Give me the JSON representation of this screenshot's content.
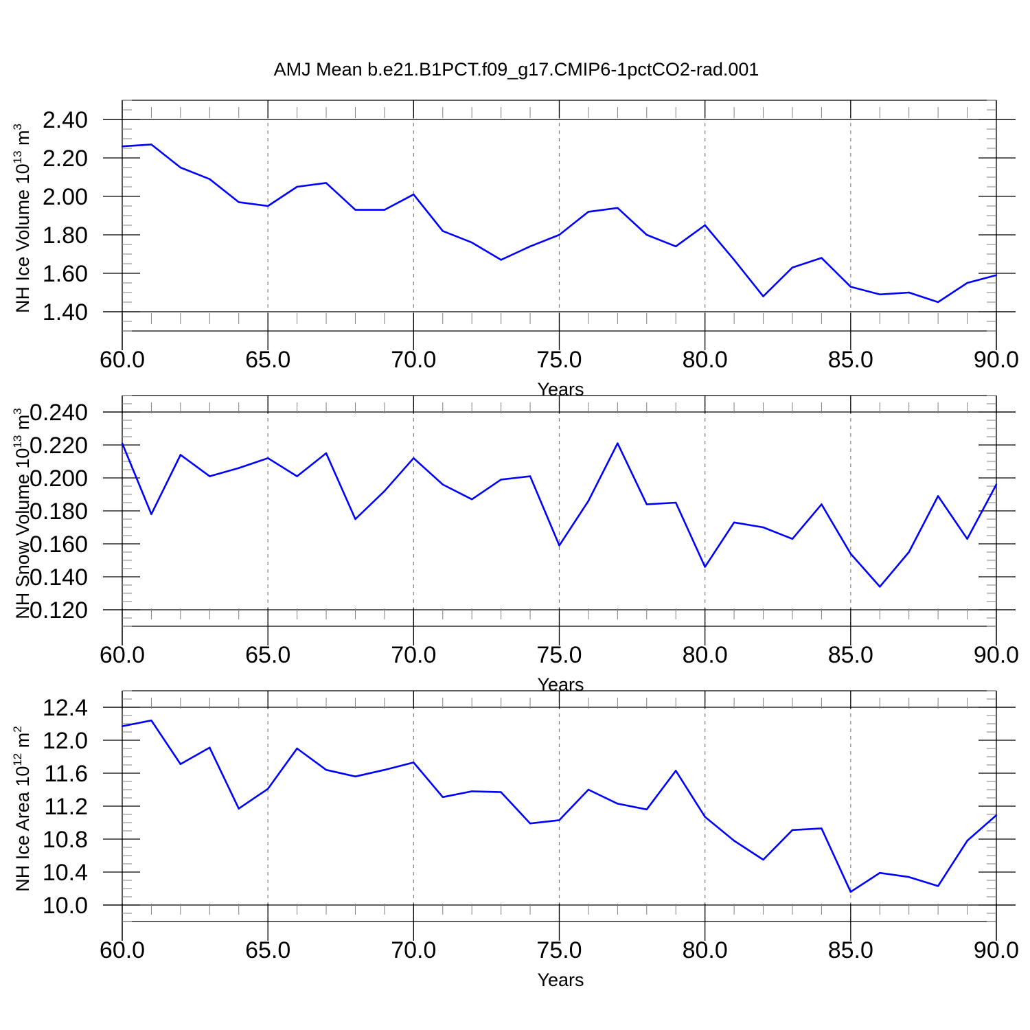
{
  "title": "AMJ Mean b.e21.B1PCT.f09_g17.CMIP6-1pctCO2-rad.001",
  "colors": {
    "line": "#0000ff",
    "axis": "#000000",
    "grid": "#808080"
  },
  "chart_data": [
    {
      "type": "line",
      "xlabel": "Years",
      "ylabel": {
        "text": "NH Ice Volume 10",
        "exponent": "13",
        "unit_text": " m",
        "unit_exponent": "3"
      },
      "xlim": [
        60,
        90
      ],
      "ylim": [
        1.3,
        2.5
      ],
      "x_ticks": [
        "60.0",
        "65.0",
        "70.0",
        "75.0",
        "80.0",
        "85.0",
        "90.0"
      ],
      "y_ticks": [
        "1.40",
        "1.60",
        "1.80",
        "2.00",
        "2.20",
        "2.40"
      ],
      "grid": "dashed vertical at major x ticks",
      "x": [
        60,
        61,
        62,
        63,
        64,
        65,
        66,
        67,
        68,
        69,
        70,
        71,
        72,
        73,
        74,
        75,
        76,
        77,
        78,
        79,
        80,
        81,
        82,
        83,
        84,
        85,
        86,
        87,
        88,
        89,
        90
      ],
      "values": [
        2.26,
        2.27,
        2.15,
        2.09,
        1.97,
        1.95,
        2.05,
        2.07,
        1.93,
        1.93,
        2.01,
        1.82,
        1.76,
        1.67,
        1.74,
        1.8,
        1.92,
        1.94,
        1.8,
        1.74,
        1.85,
        1.67,
        1.48,
        1.63,
        1.68,
        1.53,
        1.49,
        1.5,
        1.45,
        1.55,
        1.59
      ]
    },
    {
      "type": "line",
      "xlabel": "Years",
      "ylabel": {
        "text": "NH Snow Volume 10",
        "exponent": "13",
        "unit_text": " m",
        "unit_exponent": "3"
      },
      "xlim": [
        60,
        90
      ],
      "ylim": [
        0.11,
        0.25
      ],
      "x_ticks": [
        "60.0",
        "65.0",
        "70.0",
        "75.0",
        "80.0",
        "85.0",
        "90.0"
      ],
      "y_ticks": [
        "0.120",
        "0.140",
        "0.160",
        "0.180",
        "0.200",
        "0.220",
        "0.240"
      ],
      "grid": "dashed vertical at major x ticks",
      "x": [
        60,
        61,
        62,
        63,
        64,
        65,
        66,
        67,
        68,
        69,
        70,
        71,
        72,
        73,
        74,
        75,
        76,
        77,
        78,
        79,
        80,
        81,
        82,
        83,
        84,
        85,
        86,
        87,
        88,
        89,
        90
      ],
      "values": [
        0.221,
        0.178,
        0.214,
        0.201,
        0.206,
        0.212,
        0.201,
        0.215,
        0.175,
        0.192,
        0.212,
        0.196,
        0.187,
        0.199,
        0.201,
        0.159,
        0.186,
        0.221,
        0.184,
        0.185,
        0.146,
        0.173,
        0.17,
        0.163,
        0.184,
        0.154,
        0.134,
        0.155,
        0.189,
        0.163,
        0.196
      ]
    },
    {
      "type": "line",
      "xlabel": "Years",
      "ylabel": {
        "text": "NH Ice Area 10",
        "exponent": "12",
        "unit_text": " m",
        "unit_exponent": "2"
      },
      "xlim": [
        60,
        90
      ],
      "ylim": [
        9.8,
        12.6
      ],
      "x_ticks": [
        "60.0",
        "65.0",
        "70.0",
        "75.0",
        "80.0",
        "85.0",
        "90.0"
      ],
      "y_ticks": [
        "10.0",
        "10.4",
        "10.8",
        "11.2",
        "11.6",
        "12.0",
        "12.4"
      ],
      "grid": "dashed vertical at major x ticks",
      "x": [
        60,
        61,
        62,
        63,
        64,
        65,
        66,
        67,
        68,
        69,
        70,
        71,
        72,
        73,
        74,
        75,
        76,
        77,
        78,
        79,
        80,
        81,
        82,
        83,
        84,
        85,
        86,
        87,
        88,
        89,
        90
      ],
      "values": [
        12.17,
        12.24,
        11.71,
        11.91,
        11.17,
        11.41,
        11.9,
        11.64,
        11.56,
        11.64,
        11.73,
        11.31,
        11.38,
        11.37,
        10.99,
        11.03,
        11.4,
        11.23,
        11.16,
        11.63,
        11.07,
        10.78,
        10.55,
        10.91,
        10.93,
        10.16,
        10.39,
        10.34,
        10.23,
        10.78,
        11.09
      ]
    }
  ]
}
